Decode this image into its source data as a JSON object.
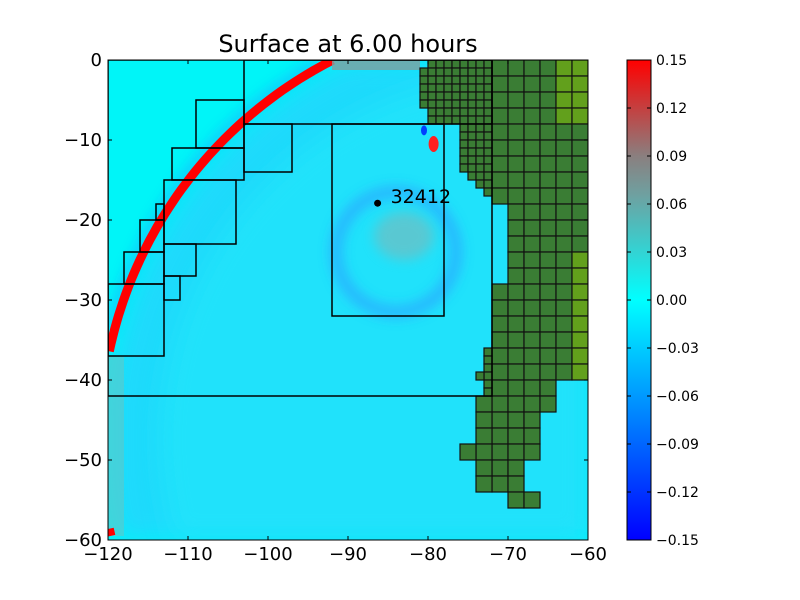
{
  "chart_data": {
    "type": "heatmap",
    "title": "Surface at 6.00 hours",
    "xlabel": "",
    "ylabel": "",
    "xlim": [
      -120,
      -60
    ],
    "ylim": [
      -60,
      0
    ],
    "x_ticks": [
      -120,
      -110,
      -100,
      -90,
      -80,
      -70,
      -60
    ],
    "x_tick_labels": [
      "−120",
      "−110",
      "−100",
      "−90",
      "−80",
      "−70",
      "−60"
    ],
    "y_ticks": [
      0,
      -10,
      -20,
      -30,
      -40,
      -50,
      -60
    ],
    "y_tick_labels": [
      "0",
      "−10",
      "−20",
      "−30",
      "−40",
      "−50",
      "−60"
    ],
    "colorbar": {
      "range": [
        -0.15,
        0.15
      ],
      "ticks": [
        0.15,
        0.12,
        0.09,
        0.06,
        0.03,
        0.0,
        -0.03,
        -0.06,
        -0.09,
        -0.12,
        -0.15
      ],
      "tick_labels": [
        "0.15",
        "0.12",
        "0.09",
        "0.06",
        "0.03",
        "0.00",
        "−0.03",
        "−0.06",
        "−0.09",
        "−0.12",
        "−0.15"
      ],
      "colors": {
        "min": "#0000ff",
        "zero": "#00ffff",
        "mid_positive": "#7f7f7f",
        "max": "#ff0000"
      }
    },
    "wavefront": {
      "center": [
        -67.7,
        -47.5
      ],
      "radius": 53.3,
      "color": "#ff0000"
    },
    "gauge": {
      "id": "32412",
      "x": -86.3,
      "y": -17.9
    },
    "amr_patches": [
      [
        -120,
        -72,
        0,
        -42
      ],
      [
        -103,
        -72,
        0,
        -8
      ],
      [
        -92,
        -78,
        -8,
        -32
      ],
      [
        -120,
        -113,
        -28,
        -37
      ],
      [
        -118,
        -113,
        -24,
        -28
      ],
      [
        -116,
        -113,
        -20,
        -24
      ],
      [
        -114,
        -113,
        -18,
        -20
      ],
      [
        -113,
        -104,
        -15,
        -23
      ],
      [
        -113,
        -109,
        -23,
        -27
      ],
      [
        -113,
        -111,
        -27,
        -30
      ],
      [
        -112,
        -103,
        -11,
        -15
      ],
      [
        -109,
        -103,
        -5,
        -11
      ],
      [
        -103,
        -97,
        -8,
        -14
      ]
    ],
    "land_blocks": [
      [
        -72,
        -70,
        0,
        -18,
        2
      ],
      [
        -72,
        -70,
        -28,
        -54,
        2
      ],
      [
        -70,
        -68,
        0,
        -56,
        2
      ],
      [
        -68,
        -66,
        0,
        -50,
        2
      ],
      [
        -68,
        -66,
        -54,
        -56,
        2
      ],
      [
        -66,
        -64,
        0,
        -44,
        2
      ],
      [
        -64,
        -60,
        0,
        -40,
        2
      ],
      [
        -74,
        -72,
        -42,
        -54,
        2
      ],
      [
        -76,
        -74,
        -48,
        -50,
        2
      ],
      [
        -80,
        -72,
        0,
        -1,
        1
      ],
      [
        -81,
        -72,
        -1,
        -6,
        1
      ],
      [
        -80,
        -72,
        -6,
        -8,
        1
      ],
      [
        -76,
        -72,
        -8,
        -14,
        1
      ],
      [
        -75,
        -72,
        -14,
        -15,
        1
      ],
      [
        -74,
        -72,
        -15,
        -16,
        1
      ],
      [
        -73,
        -72,
        -16,
        -17,
        1
      ],
      [
        -73,
        -72,
        -36,
        -42,
        1
      ],
      [
        -74,
        -73,
        -39,
        -40,
        1
      ]
    ],
    "land_colors": {
      "low": "#3a7d34",
      "high": "#62a01c"
    }
  }
}
